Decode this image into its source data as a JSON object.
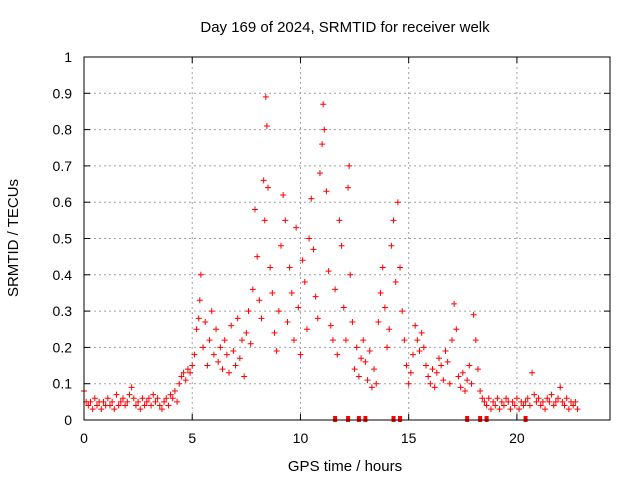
{
  "chart_data": {
    "type": "scatter",
    "title": "Day 169 of 2024, SRMTID for receiver welk",
    "xlabel": "GPS time / hours",
    "ylabel": "SRMTID / TECUs",
    "xlim": [
      0,
      24.3
    ],
    "ylim": [
      0,
      1
    ],
    "x_ticks": [
      0,
      5,
      10,
      15,
      20
    ],
    "x_tick_labels": [
      "0",
      "5",
      "10",
      "15",
      "20"
    ],
    "y_ticks": [
      0,
      0.1,
      0.2,
      0.3,
      0.4,
      0.5,
      0.6,
      0.7,
      0.8,
      0.9,
      1
    ],
    "y_tick_labels": [
      "0",
      "0.1",
      "0.2",
      "0.3",
      "0.4",
      "0.5",
      "0.6",
      "0.7",
      "0.8",
      "0.9",
      "1"
    ],
    "grid": true,
    "marker": "plus",
    "color": "#ff0000",
    "series": [
      {
        "name": "SRMTID",
        "points": [
          [
            0.0,
            0.08
          ],
          [
            0.1,
            0.05
          ],
          [
            0.2,
            0.04
          ],
          [
            0.3,
            0.05
          ],
          [
            0.4,
            0.03
          ],
          [
            0.5,
            0.06
          ],
          [
            0.6,
            0.04
          ],
          [
            0.7,
            0.05
          ],
          [
            0.8,
            0.03
          ],
          [
            0.9,
            0.05
          ],
          [
            1.0,
            0.04
          ],
          [
            1.1,
            0.06
          ],
          [
            1.2,
            0.04
          ],
          [
            1.3,
            0.05
          ],
          [
            1.4,
            0.03
          ],
          [
            1.5,
            0.07
          ],
          [
            1.6,
            0.04
          ],
          [
            1.7,
            0.05
          ],
          [
            1.8,
            0.06
          ],
          [
            1.9,
            0.04
          ],
          [
            2.0,
            0.05
          ],
          [
            2.1,
            0.07
          ],
          [
            2.2,
            0.09
          ],
          [
            2.3,
            0.06
          ],
          [
            2.4,
            0.04
          ],
          [
            2.5,
            0.05
          ],
          [
            2.6,
            0.03
          ],
          [
            2.7,
            0.06
          ],
          [
            2.8,
            0.04
          ],
          [
            2.9,
            0.05
          ],
          [
            3.0,
            0.06
          ],
          [
            3.1,
            0.04
          ],
          [
            3.2,
            0.07
          ],
          [
            3.3,
            0.05
          ],
          [
            3.4,
            0.06
          ],
          [
            3.5,
            0.04
          ],
          [
            3.6,
            0.03
          ],
          [
            3.7,
            0.05
          ],
          [
            3.8,
            0.06
          ],
          [
            3.9,
            0.04
          ],
          [
            4.0,
            0.07
          ],
          [
            4.1,
            0.06
          ],
          [
            4.2,
            0.08
          ],
          [
            4.3,
            0.05
          ],
          [
            4.4,
            0.1
          ],
          [
            4.5,
            0.12
          ],
          [
            4.6,
            0.13
          ],
          [
            4.7,
            0.11
          ],
          [
            4.8,
            0.14
          ],
          [
            4.9,
            0.13
          ],
          [
            5.0,
            0.15
          ],
          [
            5.1,
            0.18
          ],
          [
            5.2,
            0.25
          ],
          [
            5.3,
            0.28
          ],
          [
            5.35,
            0.33
          ],
          [
            5.4,
            0.4
          ],
          [
            5.5,
            0.2
          ],
          [
            5.6,
            0.27
          ],
          [
            5.7,
            0.15
          ],
          [
            5.8,
            0.22
          ],
          [
            5.9,
            0.3
          ],
          [
            6.0,
            0.18
          ],
          [
            6.1,
            0.25
          ],
          [
            6.2,
            0.16
          ],
          [
            6.3,
            0.2
          ],
          [
            6.4,
            0.14
          ],
          [
            6.5,
            0.22
          ],
          [
            6.6,
            0.18
          ],
          [
            6.7,
            0.13
          ],
          [
            6.8,
            0.26
          ],
          [
            6.9,
            0.19
          ],
          [
            7.0,
            0.15
          ],
          [
            7.1,
            0.28
          ],
          [
            7.2,
            0.17
          ],
          [
            7.3,
            0.22
          ],
          [
            7.4,
            0.12
          ],
          [
            7.5,
            0.24
          ],
          [
            7.6,
            0.3
          ],
          [
            7.7,
            0.21
          ],
          [
            7.8,
            0.36
          ],
          [
            7.9,
            0.58
          ],
          [
            8.0,
            0.45
          ],
          [
            8.1,
            0.33
          ],
          [
            8.2,
            0.28
          ],
          [
            8.3,
            0.66
          ],
          [
            8.35,
            0.55
          ],
          [
            8.4,
            0.89
          ],
          [
            8.45,
            0.81
          ],
          [
            8.5,
            0.64
          ],
          [
            8.6,
            0.42
          ],
          [
            8.7,
            0.35
          ],
          [
            8.8,
            0.24
          ],
          [
            8.9,
            0.19
          ],
          [
            9.0,
            0.3
          ],
          [
            9.1,
            0.48
          ],
          [
            9.2,
            0.62
          ],
          [
            9.3,
            0.55
          ],
          [
            9.4,
            0.27
          ],
          [
            9.5,
            0.42
          ],
          [
            9.6,
            0.35
          ],
          [
            9.7,
            0.22
          ],
          [
            9.8,
            0.53
          ],
          [
            9.9,
            0.31
          ],
          [
            10.0,
            0.18
          ],
          [
            10.1,
            0.44
          ],
          [
            10.2,
            0.38
          ],
          [
            10.3,
            0.25
          ],
          [
            10.4,
            0.5
          ],
          [
            10.5,
            0.61
          ],
          [
            10.6,
            0.47
          ],
          [
            10.7,
            0.34
          ],
          [
            10.8,
            0.28
          ],
          [
            10.9,
            0.68
          ],
          [
            11.0,
            0.76
          ],
          [
            11.05,
            0.87
          ],
          [
            11.1,
            0.8
          ],
          [
            11.2,
            0.63
          ],
          [
            11.3,
            0.41
          ],
          [
            11.4,
            0.26
          ],
          [
            11.5,
            0.22
          ],
          [
            11.6,
            0.36
          ],
          [
            11.7,
            0.18
          ],
          [
            11.8,
            0.55
          ],
          [
            11.9,
            0.48
          ],
          [
            12.0,
            0.31
          ],
          [
            12.1,
            0.22
          ],
          [
            12.2,
            0.64
          ],
          [
            12.25,
            0.7
          ],
          [
            12.3,
            0.4
          ],
          [
            12.4,
            0.27
          ],
          [
            12.5,
            0.14
          ],
          [
            12.6,
            0.2
          ],
          [
            12.7,
            0.12
          ],
          [
            12.8,
            0.17
          ],
          [
            12.9,
            0.22
          ],
          [
            13.0,
            0.16
          ],
          [
            13.1,
            0.11
          ],
          [
            13.2,
            0.19
          ],
          [
            13.3,
            0.09
          ],
          [
            13.4,
            0.14
          ],
          [
            13.5,
            0.1
          ],
          [
            13.6,
            0.27
          ],
          [
            13.7,
            0.35
          ],
          [
            13.8,
            0.42
          ],
          [
            13.9,
            0.31
          ],
          [
            14.0,
            0.2
          ],
          [
            14.1,
            0.25
          ],
          [
            14.2,
            0.48
          ],
          [
            14.3,
            0.55
          ],
          [
            14.4,
            0.38
          ],
          [
            14.5,
            0.6
          ],
          [
            14.6,
            0.42
          ],
          [
            14.7,
            0.3
          ],
          [
            14.8,
            0.22
          ],
          [
            14.9,
            0.15
          ],
          [
            15.0,
            0.1
          ],
          [
            15.1,
            0.13
          ],
          [
            15.2,
            0.18
          ],
          [
            15.3,
            0.26
          ],
          [
            15.4,
            0.22
          ],
          [
            15.5,
            0.19
          ],
          [
            15.6,
            0.24
          ],
          [
            15.7,
            0.2
          ],
          [
            15.8,
            0.15
          ],
          [
            15.9,
            0.12
          ],
          [
            16.0,
            0.1
          ],
          [
            16.1,
            0.14
          ],
          [
            16.2,
            0.09
          ],
          [
            16.3,
            0.13
          ],
          [
            16.4,
            0.17
          ],
          [
            16.5,
            0.15
          ],
          [
            16.6,
            0.11
          ],
          [
            16.7,
            0.19
          ],
          [
            16.8,
            0.16
          ],
          [
            16.9,
            0.1
          ],
          [
            17.0,
            0.22
          ],
          [
            17.1,
            0.32
          ],
          [
            17.2,
            0.25
          ],
          [
            17.3,
            0.12
          ],
          [
            17.4,
            0.09
          ],
          [
            17.5,
            0.13
          ],
          [
            17.6,
            0.08
          ],
          [
            17.7,
            0.11
          ],
          [
            17.8,
            0.15
          ],
          [
            17.9,
            0.1
          ],
          [
            18.0,
            0.29
          ],
          [
            18.1,
            0.22
          ],
          [
            18.2,
            0.14
          ],
          [
            18.3,
            0.08
          ],
          [
            18.4,
            0.06
          ],
          [
            18.5,
            0.05
          ],
          [
            18.6,
            0.04
          ],
          [
            18.7,
            0.06
          ],
          [
            18.8,
            0.03
          ],
          [
            18.9,
            0.05
          ],
          [
            19.0,
            0.04
          ],
          [
            19.1,
            0.06
          ],
          [
            19.2,
            0.03
          ],
          [
            19.3,
            0.05
          ],
          [
            19.4,
            0.04
          ],
          [
            19.5,
            0.06
          ],
          [
            19.6,
            0.05
          ],
          [
            19.7,
            0.03
          ],
          [
            19.8,
            0.05
          ],
          [
            19.9,
            0.04
          ],
          [
            20.0,
            0.06
          ],
          [
            20.1,
            0.03
          ],
          [
            20.2,
            0.05
          ],
          [
            20.3,
            0.04
          ],
          [
            20.4,
            0.05
          ],
          [
            20.5,
            0.06
          ],
          [
            20.6,
            0.04
          ],
          [
            20.7,
            0.13
          ],
          [
            20.8,
            0.07
          ],
          [
            20.9,
            0.05
          ],
          [
            21.0,
            0.06
          ],
          [
            21.1,
            0.04
          ],
          [
            21.2,
            0.05
          ],
          [
            21.3,
            0.03
          ],
          [
            21.4,
            0.06
          ],
          [
            21.5,
            0.05
          ],
          [
            21.6,
            0.07
          ],
          [
            21.7,
            0.04
          ],
          [
            21.8,
            0.05
          ],
          [
            21.9,
            0.06
          ],
          [
            22.0,
            0.09
          ],
          [
            22.1,
            0.05
          ],
          [
            22.2,
            0.04
          ],
          [
            22.3,
            0.06
          ],
          [
            22.4,
            0.03
          ],
          [
            22.5,
            0.05
          ],
          [
            22.6,
            0.04
          ],
          [
            22.7,
            0.05
          ],
          [
            22.8,
            0.03
          ]
        ]
      }
    ],
    "zero_markers_x": [
      11.6,
      12.2,
      12.7,
      13.0,
      14.3,
      14.6,
      17.7,
      18.3,
      18.6,
      20.4
    ]
  }
}
